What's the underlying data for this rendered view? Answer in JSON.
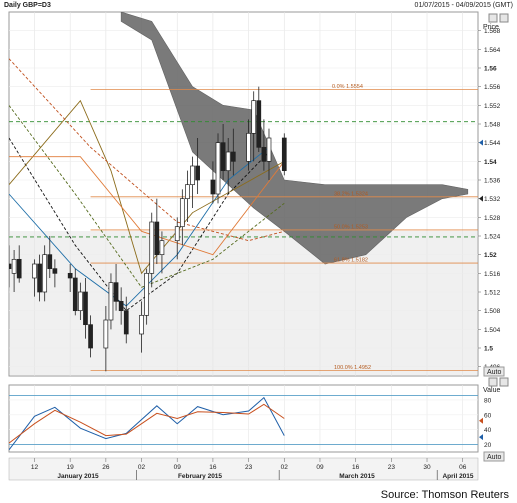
{
  "header": {
    "left_title": "Daily GBP=D3",
    "right_range": "01/07/2015 - 04/09/2015 (GMT)"
  },
  "source_text": "Source: Thomson Reuters",
  "price_panel": {
    "axis_title": "Price",
    "auto_label": "Auto",
    "ticks": [
      "1.568",
      "1.564",
      "1.56",
      "1.556",
      "1.552",
      "1.548",
      "1.544",
      "1.54",
      "1.536",
      "1.532",
      "1.528",
      "1.524",
      "1.52",
      "1.516",
      "1.512",
      "1.508",
      "1.504",
      "1.5",
      "1.496"
    ]
  },
  "osc_panel": {
    "axis_title": "Value",
    "auto_label": "Auto",
    "ticks": [
      "80",
      "60",
      "40",
      "20"
    ]
  },
  "x_axis": {
    "day_ticks": [
      "12",
      "19",
      "26",
      "02",
      "09",
      "16",
      "23",
      "02",
      "09",
      "16",
      "23",
      "30",
      "06"
    ],
    "month_labels": [
      "January 2015",
      "February 2015",
      "March 2015",
      "April 2015"
    ]
  },
  "chart_data": [
    {
      "type": "candlestick",
      "title": "Daily GBP=D3",
      "ylabel": "Price",
      "ylim": [
        1.494,
        1.572
      ],
      "x_range": [
        "2015-01-07",
        "2015-04-09"
      ],
      "candles": [
        {
          "d": "2015-01-07",
          "o": 1.518,
          "h": 1.522,
          "l": 1.513,
          "c": 1.517
        },
        {
          "d": "2015-01-08",
          "o": 1.516,
          "h": 1.521,
          "l": 1.512,
          "c": 1.519
        },
        {
          "d": "2015-01-09",
          "o": 1.519,
          "h": 1.522,
          "l": 1.514,
          "c": 1.515
        },
        {
          "d": "2015-01-12",
          "o": 1.515,
          "h": 1.519,
          "l": 1.511,
          "c": 1.518
        },
        {
          "d": "2015-01-13",
          "o": 1.518,
          "h": 1.52,
          "l": 1.51,
          "c": 1.512
        },
        {
          "d": "2015-01-14",
          "o": 1.512,
          "h": 1.522,
          "l": 1.51,
          "c": 1.52
        },
        {
          "d": "2015-01-15",
          "o": 1.52,
          "h": 1.524,
          "l": 1.515,
          "c": 1.517
        },
        {
          "d": "2015-01-16",
          "o": 1.517,
          "h": 1.519,
          "l": 1.513,
          "c": 1.516
        },
        {
          "d": "2015-01-19",
          "o": 1.516,
          "h": 1.518,
          "l": 1.512,
          "c": 1.515
        },
        {
          "d": "2015-01-20",
          "o": 1.515,
          "h": 1.517,
          "l": 1.507,
          "c": 1.508
        },
        {
          "d": "2015-01-21",
          "o": 1.508,
          "h": 1.514,
          "l": 1.506,
          "c": 1.512
        },
        {
          "d": "2015-01-22",
          "o": 1.512,
          "h": 1.515,
          "l": 1.502,
          "c": 1.505
        },
        {
          "d": "2015-01-23",
          "o": 1.505,
          "h": 1.507,
          "l": 1.498,
          "c": 1.5
        },
        {
          "d": "2015-01-26",
          "o": 1.5,
          "h": 1.509,
          "l": 1.495,
          "c": 1.506
        },
        {
          "d": "2015-01-27",
          "o": 1.506,
          "h": 1.516,
          "l": 1.504,
          "c": 1.514
        },
        {
          "d": "2015-01-28",
          "o": 1.514,
          "h": 1.518,
          "l": 1.508,
          "c": 1.51
        },
        {
          "d": "2015-01-29",
          "o": 1.51,
          "h": 1.513,
          "l": 1.505,
          "c": 1.508
        },
        {
          "d": "2015-01-30",
          "o": 1.508,
          "h": 1.511,
          "l": 1.501,
          "c": 1.503
        },
        {
          "d": "2015-02-02",
          "o": 1.503,
          "h": 1.51,
          "l": 1.499,
          "c": 1.507
        },
        {
          "d": "2015-02-03",
          "o": 1.507,
          "h": 1.517,
          "l": 1.505,
          "c": 1.516
        },
        {
          "d": "2015-02-04",
          "o": 1.516,
          "h": 1.529,
          "l": 1.513,
          "c": 1.527
        },
        {
          "d": "2015-02-05",
          "o": 1.527,
          "h": 1.532,
          "l": 1.518,
          "c": 1.52
        },
        {
          "d": "2015-02-06",
          "o": 1.52,
          "h": 1.525,
          "l": 1.516,
          "c": 1.523
        },
        {
          "d": "2015-02-09",
          "o": 1.523,
          "h": 1.528,
          "l": 1.519,
          "c": 1.526
        },
        {
          "d": "2015-02-10",
          "o": 1.526,
          "h": 1.534,
          "l": 1.522,
          "c": 1.532
        },
        {
          "d": "2015-02-11",
          "o": 1.532,
          "h": 1.538,
          "l": 1.527,
          "c": 1.535
        },
        {
          "d": "2015-02-12",
          "o": 1.535,
          "h": 1.541,
          "l": 1.53,
          "c": 1.539
        },
        {
          "d": "2015-02-13",
          "o": 1.539,
          "h": 1.545,
          "l": 1.533,
          "c": 1.536
        },
        {
          "d": "2015-02-16",
          "o": 1.536,
          "h": 1.54,
          "l": 1.531,
          "c": 1.533
        },
        {
          "d": "2015-02-17",
          "o": 1.533,
          "h": 1.546,
          "l": 1.531,
          "c": 1.544
        },
        {
          "d": "2015-02-18",
          "o": 1.544,
          "h": 1.548,
          "l": 1.536,
          "c": 1.538
        },
        {
          "d": "2015-02-19",
          "o": 1.538,
          "h": 1.545,
          "l": 1.533,
          "c": 1.542
        },
        {
          "d": "2015-02-20",
          "o": 1.542,
          "h": 1.547,
          "l": 1.537,
          "c": 1.54
        },
        {
          "d": "2015-02-23",
          "o": 1.54,
          "h": 1.549,
          "l": 1.538,
          "c": 1.546
        },
        {
          "d": "2015-02-24",
          "o": 1.546,
          "h": 1.555,
          "l": 1.54,
          "c": 1.553
        },
        {
          "d": "2015-02-25",
          "o": 1.553,
          "h": 1.556,
          "l": 1.542,
          "c": 1.543
        },
        {
          "d": "2015-02-26",
          "o": 1.543,
          "h": 1.549,
          "l": 1.538,
          "c": 1.54
        },
        {
          "d": "2015-02-27",
          "o": 1.54,
          "h": 1.547,
          "l": 1.536,
          "c": 1.545
        },
        {
          "d": "2015-03-02",
          "o": 1.545,
          "h": 1.546,
          "l": 1.537,
          "c": 1.538
        }
      ],
      "ichimoku_cloud": {
        "dates": [
          "2015-01-29",
          "2015-02-04",
          "2015-02-12",
          "2015-02-18",
          "2015-02-24",
          "2015-03-02",
          "2015-03-10",
          "2015-03-18",
          "2015-03-26",
          "2015-04-02",
          "2015-04-07"
        ],
        "upper": [
          1.572,
          1.57,
          1.556,
          1.552,
          1.551,
          1.536,
          1.535,
          1.535,
          1.535,
          1.535,
          1.534
        ],
        "lower": [
          1.57,
          1.566,
          1.542,
          1.536,
          1.53,
          1.525,
          1.518,
          1.52,
          1.528,
          1.532,
          1.533
        ]
      },
      "moving_averages": [
        {
          "color": "#1f6fa8",
          "style": "solid",
          "dates": [
            "2015-01-07",
            "2015-01-20",
            "2015-01-30",
            "2015-02-09",
            "2015-02-19",
            "2015-02-27"
          ],
          "values": [
            1.533,
            1.517,
            1.509,
            1.52,
            1.536,
            1.543
          ]
        },
        {
          "color": "#111111",
          "style": "dashed",
          "dates": [
            "2015-01-07",
            "2015-01-20",
            "2015-01-30",
            "2015-02-09",
            "2015-02-19",
            "2015-02-27"
          ],
          "values": [
            1.545,
            1.522,
            1.508,
            1.516,
            1.533,
            1.542
          ]
        },
        {
          "color": "#556b1e",
          "style": "dashed",
          "dates": [
            "2015-01-07",
            "2015-01-20",
            "2015-02-02",
            "2015-02-16",
            "2015-03-02"
          ],
          "values": [
            1.552,
            1.533,
            1.513,
            1.519,
            1.531
          ]
        },
        {
          "color": "#8b6b1a",
          "style": "solid",
          "dates": [
            "2015-01-07",
            "2015-01-21",
            "2015-01-23",
            "2015-01-27",
            "2015-02-02",
            "2015-02-12",
            "2015-03-02"
          ],
          "values": [
            1.535,
            1.553,
            1.548,
            1.538,
            1.516,
            1.529,
            1.54
          ]
        },
        {
          "color": "#e07b39",
          "style": "solid",
          "dates": [
            "2015-01-07",
            "2015-01-21",
            "2015-02-02",
            "2015-02-16",
            "2015-03-02"
          ],
          "values": [
            1.541,
            1.541,
            1.525,
            1.52,
            1.54
          ]
        },
        {
          "color": "#c0501e",
          "style": "dashed",
          "dates": [
            "2015-01-07",
            "2015-01-23",
            "2015-02-09",
            "2015-02-23",
            "2015-03-02"
          ],
          "values": [
            1.562,
            1.543,
            1.527,
            1.523,
            1.525
          ]
        }
      ],
      "fibonacci": [
        {
          "label": "0.0%",
          "value": 1.5554,
          "text": "0.0% 1.5554"
        },
        {
          "label": "38.2%",
          "value": 1.5324,
          "text": "38.2% 1.5324"
        },
        {
          "label": "50.0%",
          "value": 1.5253,
          "text": "50.0% 1.5253"
        },
        {
          "label": "61.8%",
          "value": 1.5182,
          "text": "61.8% 1.5182"
        },
        {
          "label": "100.0%",
          "value": 1.4952,
          "text": "100.0% 1.4952"
        }
      ],
      "reference_lines": [
        {
          "value": 1.5485,
          "color": "#2e8b2e",
          "style": "dashed"
        },
        {
          "value": 1.5238,
          "color": "#2e8b2e",
          "style": "dashed"
        }
      ],
      "current_price_markers": [
        1.544,
        1.532
      ],
      "grid": true
    },
    {
      "type": "line",
      "ylabel": "Value",
      "ylim": [
        10,
        100
      ],
      "reference_lines": [
        86,
        20
      ],
      "series": [
        {
          "color": "#1f5fa8",
          "dates": [
            "2015-01-07",
            "2015-01-12",
            "2015-01-16",
            "2015-01-21",
            "2015-01-26",
            "2015-01-30",
            "2015-02-05",
            "2015-02-09",
            "2015-02-13",
            "2015-02-18",
            "2015-02-23",
            "2015-02-26",
            "2015-03-02"
          ],
          "values": [
            13,
            58,
            70,
            42,
            28,
            35,
            72,
            48,
            71,
            60,
            65,
            83,
            32
          ]
        },
        {
          "color": "#c8501e",
          "dates": [
            "2015-01-07",
            "2015-01-12",
            "2015-01-16",
            "2015-01-21",
            "2015-01-26",
            "2015-01-30",
            "2015-02-05",
            "2015-02-09",
            "2015-02-13",
            "2015-02-18",
            "2015-02-23",
            "2015-02-26",
            "2015-03-02"
          ],
          "values": [
            22,
            48,
            66,
            50,
            32,
            34,
            62,
            55,
            64,
            63,
            61,
            74,
            55
          ]
        }
      ],
      "current_value_markers": [
        52,
        30
      ]
    }
  ]
}
